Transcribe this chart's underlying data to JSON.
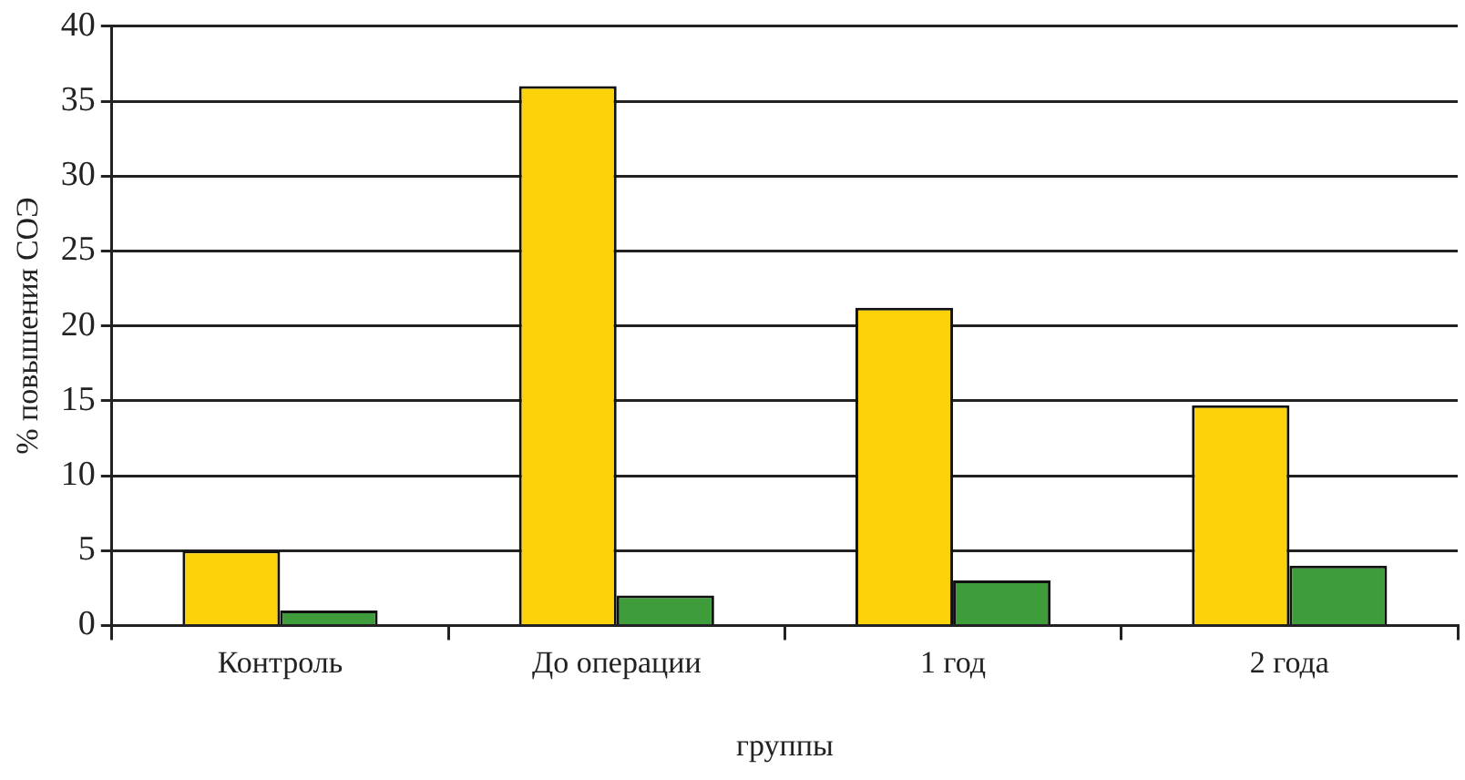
{
  "chart_data": {
    "type": "bar",
    "xlabel": "группы",
    "ylabel": "% повышения СОЭ",
    "categories": [
      "Контроль",
      "До операции",
      "1 год",
      "2 года"
    ],
    "series": [
      {
        "color": "#fcd20a",
        "values": [
          5,
          36,
          21.2,
          14.7
        ]
      },
      {
        "color": "#3f9c3a",
        "values": [
          1,
          2,
          3,
          4
        ]
      }
    ],
    "ylim": [
      0,
      40
    ],
    "yticks": [
      0,
      5,
      10,
      15,
      20,
      25,
      30,
      35,
      40
    ],
    "grid": "y",
    "legend": false
  }
}
